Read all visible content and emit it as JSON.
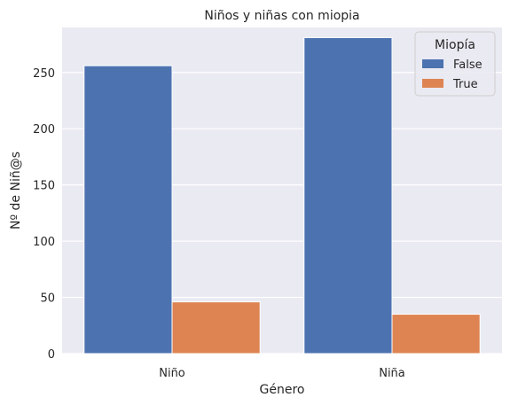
{
  "chart_data": {
    "type": "bar",
    "title": "Niños y niñas con miopia",
    "xlabel": "Género",
    "ylabel": "Nº de Niñ@s",
    "categories": [
      "Niño",
      "Niña"
    ],
    "series": [
      {
        "name": "False",
        "values": [
          256,
          281
        ],
        "color": "#4c72b0"
      },
      {
        "name": "True",
        "values": [
          46,
          35
        ],
        "color": "#dd8452"
      }
    ],
    "ylim": [
      0,
      290
    ],
    "yticks": [
      0,
      50,
      100,
      150,
      200,
      250
    ],
    "grid": true,
    "legend": {
      "title": "Miopía",
      "placement": "top-right"
    },
    "background": "#eaeaf2"
  }
}
